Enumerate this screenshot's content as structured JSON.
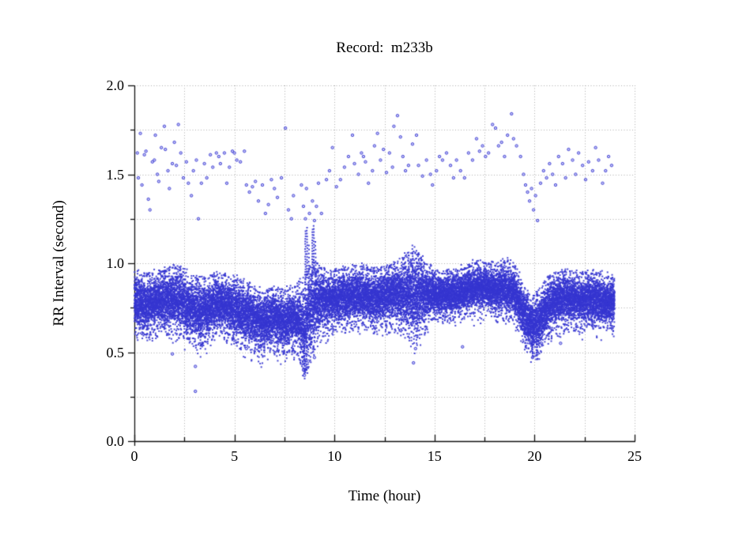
{
  "chart_data": {
    "type": "scatter",
    "title": "Record:  m233b",
    "xlabel": "Time (hour)",
    "ylabel": "RR Interval (second)",
    "xlim": [
      0,
      25
    ],
    "ylim": [
      0,
      2
    ],
    "x_tick_values": [
      0,
      5,
      10,
      15,
      20,
      25
    ],
    "x_tick_labels": [
      "0",
      "5",
      "10",
      "15",
      "20",
      "25"
    ],
    "x_minor_step": 2.5,
    "y_tick_values": [
      0,
      0.5,
      1,
      1.5,
      2
    ],
    "y_tick_labels": [
      "0.0",
      "0.5",
      "1.0",
      "1.5",
      "2.0"
    ],
    "y_minor_step": 0.25,
    "grid": {
      "style": "dotted",
      "color": "#ababab",
      "at_every_minor_tick": true
    },
    "point_color": "#3636d0",
    "data_hours_range": [
      0,
      24
    ],
    "series": [
      {
        "name": "dense-rr-band",
        "type": "envelope-scatter",
        "envelope": [
          [
            0,
            0.63,
            0.95
          ],
          [
            0.3,
            0.62,
            0.93
          ],
          [
            0.6,
            0.6,
            0.92
          ],
          [
            0.9,
            0.63,
            0.93
          ],
          [
            1.2,
            0.66,
            0.94
          ],
          [
            1.5,
            0.64,
            0.95
          ],
          [
            1.8,
            0.62,
            0.96
          ],
          [
            2.1,
            0.62,
            0.97
          ],
          [
            2.4,
            0.6,
            0.95
          ],
          [
            2.7,
            0.58,
            0.93
          ],
          [
            3.0,
            0.58,
            0.92
          ],
          [
            3.3,
            0.55,
            0.9
          ],
          [
            3.6,
            0.57,
            0.91
          ],
          [
            3.9,
            0.6,
            0.92
          ],
          [
            4.2,
            0.62,
            0.93
          ],
          [
            4.5,
            0.62,
            0.93
          ],
          [
            4.8,
            0.6,
            0.91
          ],
          [
            5.1,
            0.58,
            0.9
          ],
          [
            5.4,
            0.56,
            0.89
          ],
          [
            5.7,
            0.54,
            0.87
          ],
          [
            6.0,
            0.53,
            0.85
          ],
          [
            6.3,
            0.5,
            0.83
          ],
          [
            6.6,
            0.52,
            0.83
          ],
          [
            6.9,
            0.54,
            0.85
          ],
          [
            7.2,
            0.52,
            0.84
          ],
          [
            7.5,
            0.51,
            0.83
          ],
          [
            7.8,
            0.53,
            0.85
          ],
          [
            8.1,
            0.52,
            0.86
          ],
          [
            8.35,
            0.45,
            0.88
          ],
          [
            8.5,
            0.38,
            0.9
          ],
          [
            8.7,
            0.45,
            0.95
          ],
          [
            8.9,
            0.52,
            1.0
          ],
          [
            9.1,
            0.58,
            1.0
          ],
          [
            9.3,
            0.62,
            0.97
          ],
          [
            9.6,
            0.64,
            0.95
          ],
          [
            10.0,
            0.65,
            0.95
          ],
          [
            10.4,
            0.66,
            0.96
          ],
          [
            10.8,
            0.67,
            0.96
          ],
          [
            11.2,
            0.68,
            0.97
          ],
          [
            11.6,
            0.66,
            0.96
          ],
          [
            12.0,
            0.65,
            0.95
          ],
          [
            12.4,
            0.66,
            0.96
          ],
          [
            12.8,
            0.67,
            0.98
          ],
          [
            13.2,
            0.66,
            1.0
          ],
          [
            13.6,
            0.62,
            1.03
          ],
          [
            14.0,
            0.57,
            1.06
          ],
          [
            14.3,
            0.62,
            1.02
          ],
          [
            14.6,
            0.67,
            0.98
          ],
          [
            15.0,
            0.7,
            0.95
          ],
          [
            15.4,
            0.71,
            0.94
          ],
          [
            15.8,
            0.7,
            0.94
          ],
          [
            16.2,
            0.71,
            0.95
          ],
          [
            16.6,
            0.72,
            0.97
          ],
          [
            17.0,
            0.73,
            0.99
          ],
          [
            17.4,
            0.74,
            1.0
          ],
          [
            17.8,
            0.73,
            0.99
          ],
          [
            18.2,
            0.72,
            0.98
          ],
          [
            18.6,
            0.72,
            1.0
          ],
          [
            19.0,
            0.7,
            0.97
          ],
          [
            19.3,
            0.62,
            0.9
          ],
          [
            19.6,
            0.54,
            0.84
          ],
          [
            19.9,
            0.5,
            0.8
          ],
          [
            20.2,
            0.52,
            0.82
          ],
          [
            20.5,
            0.58,
            0.88
          ],
          [
            20.8,
            0.62,
            0.92
          ],
          [
            21.1,
            0.65,
            0.94
          ],
          [
            21.5,
            0.66,
            0.95
          ],
          [
            21.9,
            0.67,
            0.94
          ],
          [
            22.3,
            0.65,
            0.93
          ],
          [
            22.7,
            0.66,
            0.94
          ],
          [
            23.1,
            0.65,
            0.93
          ],
          [
            23.5,
            0.64,
            0.92
          ],
          [
            24.0,
            0.65,
            0.9
          ]
        ]
      },
      {
        "name": "long-rr-outliers",
        "type": "points",
        "points": [
          [
            0.15,
            1.62
          ],
          [
            0.2,
            1.48
          ],
          [
            0.3,
            1.73
          ],
          [
            0.38,
            1.44
          ],
          [
            0.5,
            1.61
          ],
          [
            0.58,
            1.63
          ],
          [
            0.7,
            1.36
          ],
          [
            0.78,
            1.3
          ],
          [
            0.9,
            1.57
          ],
          [
            1.0,
            1.58
          ],
          [
            1.05,
            1.72
          ],
          [
            1.15,
            1.5
          ],
          [
            1.22,
            1.46
          ],
          [
            1.35,
            1.65
          ],
          [
            1.5,
            1.77
          ],
          [
            1.55,
            1.64
          ],
          [
            1.68,
            1.52
          ],
          [
            1.75,
            1.42
          ],
          [
            1.9,
            1.56
          ],
          [
            2.0,
            1.68
          ],
          [
            2.1,
            1.55
          ],
          [
            2.2,
            1.78
          ],
          [
            2.32,
            1.62
          ],
          [
            2.45,
            1.48
          ],
          [
            2.6,
            1.57
          ],
          [
            2.7,
            1.45
          ],
          [
            2.85,
            1.38
          ],
          [
            2.95,
            1.52
          ],
          [
            3.1,
            1.58
          ],
          [
            3.2,
            1.25
          ],
          [
            3.35,
            1.45
          ],
          [
            3.5,
            1.56
          ],
          [
            3.62,
            1.48
          ],
          [
            3.8,
            1.61
          ],
          [
            3.92,
            1.54
          ],
          [
            4.1,
            1.62
          ],
          [
            4.22,
            1.6
          ],
          [
            4.3,
            1.56
          ],
          [
            4.5,
            1.62
          ],
          [
            4.62,
            1.45
          ],
          [
            4.75,
            1.54
          ],
          [
            4.9,
            1.63
          ],
          [
            5.0,
            1.62
          ],
          [
            5.12,
            1.58
          ],
          [
            5.3,
            1.57
          ],
          [
            5.5,
            1.63
          ],
          [
            5.6,
            1.44
          ],
          [
            5.75,
            1.4
          ],
          [
            5.9,
            1.43
          ],
          [
            6.05,
            1.46
          ],
          [
            6.2,
            1.35
          ],
          [
            6.4,
            1.44
          ],
          [
            6.55,
            1.28
          ],
          [
            6.7,
            1.33
          ],
          [
            6.85,
            1.47
          ],
          [
            7.0,
            1.42
          ],
          [
            7.15,
            1.37
          ],
          [
            7.35,
            1.48
          ],
          [
            7.55,
            1.76
          ],
          [
            7.7,
            1.3
          ],
          [
            7.85,
            1.25
          ],
          [
            7.95,
            1.38
          ],
          [
            8.35,
            1.44
          ],
          [
            8.45,
            1.32
          ],
          [
            8.55,
            1.25
          ],
          [
            8.6,
            1.42
          ],
          [
            8.75,
            1.28
          ],
          [
            8.9,
            1.35
          ],
          [
            9.0,
            1.24
          ],
          [
            9.1,
            1.32
          ],
          [
            9.2,
            1.45
          ],
          [
            9.35,
            1.28
          ],
          [
            9.6,
            1.47
          ],
          [
            9.75,
            1.52
          ],
          [
            9.9,
            1.65
          ],
          [
            10.1,
            1.43
          ],
          [
            10.3,
            1.47
          ],
          [
            10.5,
            1.54
          ],
          [
            10.7,
            1.6
          ],
          [
            10.9,
            1.72
          ],
          [
            11.0,
            1.56
          ],
          [
            11.2,
            1.5
          ],
          [
            11.35,
            1.62
          ],
          [
            11.45,
            1.6
          ],
          [
            11.55,
            1.57
          ],
          [
            11.7,
            1.45
          ],
          [
            11.9,
            1.52
          ],
          [
            12.0,
            1.66
          ],
          [
            12.15,
            1.73
          ],
          [
            12.3,
            1.58
          ],
          [
            12.45,
            1.64
          ],
          [
            12.6,
            1.51
          ],
          [
            12.75,
            1.62
          ],
          [
            12.9,
            1.54
          ],
          [
            12.97,
            1.77
          ],
          [
            13.15,
            1.83
          ],
          [
            13.3,
            1.71
          ],
          [
            13.42,
            1.6
          ],
          [
            13.55,
            1.52
          ],
          [
            13.7,
            1.55
          ],
          [
            13.9,
            1.67
          ],
          [
            14.1,
            1.72
          ],
          [
            14.2,
            1.55
          ],
          [
            14.4,
            1.49
          ],
          [
            14.6,
            1.58
          ],
          [
            14.8,
            1.5
          ],
          [
            14.9,
            1.44
          ],
          [
            15.1,
            1.52
          ],
          [
            15.25,
            1.6
          ],
          [
            15.4,
            1.58
          ],
          [
            15.6,
            1.62
          ],
          [
            15.8,
            1.55
          ],
          [
            15.95,
            1.48
          ],
          [
            16.1,
            1.58
          ],
          [
            16.3,
            1.52
          ],
          [
            16.5,
            1.48
          ],
          [
            16.7,
            1.62
          ],
          [
            16.9,
            1.58
          ],
          [
            17.1,
            1.7
          ],
          [
            17.25,
            1.63
          ],
          [
            17.4,
            1.66
          ],
          [
            17.55,
            1.6
          ],
          [
            17.7,
            1.62
          ],
          [
            17.9,
            1.78
          ],
          [
            18.05,
            1.76
          ],
          [
            18.2,
            1.66
          ],
          [
            18.35,
            1.68
          ],
          [
            18.5,
            1.6
          ],
          [
            18.65,
            1.72
          ],
          [
            18.85,
            1.84
          ],
          [
            18.95,
            1.7
          ],
          [
            19.1,
            1.66
          ],
          [
            19.3,
            1.6
          ],
          [
            19.45,
            1.5
          ],
          [
            19.55,
            1.44
          ],
          [
            19.65,
            1.4
          ],
          [
            19.75,
            1.35
          ],
          [
            19.85,
            1.42
          ],
          [
            19.95,
            1.3
          ],
          [
            20.05,
            1.38
          ],
          [
            20.15,
            1.24
          ],
          [
            20.3,
            1.45
          ],
          [
            20.45,
            1.52
          ],
          [
            20.6,
            1.48
          ],
          [
            20.75,
            1.56
          ],
          [
            20.9,
            1.5
          ],
          [
            21.05,
            1.44
          ],
          [
            21.2,
            1.6
          ],
          [
            21.4,
            1.56
          ],
          [
            21.55,
            1.48
          ],
          [
            21.7,
            1.64
          ],
          [
            21.9,
            1.58
          ],
          [
            22.05,
            1.5
          ],
          [
            22.2,
            1.62
          ],
          [
            22.4,
            1.55
          ],
          [
            22.55,
            1.47
          ],
          [
            22.7,
            1.57
          ],
          [
            22.9,
            1.52
          ],
          [
            23.05,
            1.65
          ],
          [
            23.2,
            1.58
          ],
          [
            23.4,
            1.45
          ],
          [
            23.55,
            1.52
          ],
          [
            23.7,
            1.6
          ],
          [
            23.85,
            1.55
          ]
        ]
      },
      {
        "name": "short-rr-outliers",
        "type": "points",
        "points": [
          [
            1.9,
            0.49
          ],
          [
            3.05,
            0.42
          ],
          [
            3.05,
            0.28
          ],
          [
            5.6,
            0.52
          ],
          [
            8.45,
            0.4
          ],
          [
            8.5,
            0.37
          ],
          [
            8.55,
            0.43
          ],
          [
            8.7,
            0.45
          ],
          [
            9.0,
            0.47
          ],
          [
            13.95,
            0.44
          ],
          [
            14.05,
            0.52
          ],
          [
            19.9,
            0.47
          ],
          [
            20.35,
            0.55
          ],
          [
            21.3,
            0.55
          ],
          [
            16.4,
            0.53
          ]
        ]
      },
      {
        "name": "transient-streaks",
        "type": "vertical-streaks",
        "streaks": [
          [
            8.5,
            0.38,
            0.62,
            18
          ],
          [
            8.55,
            0.88,
            1.18,
            22
          ],
          [
            8.6,
            0.4,
            0.6,
            14
          ],
          [
            8.63,
            0.92,
            1.2,
            18
          ],
          [
            8.72,
            0.85,
            1.1,
            12
          ],
          [
            8.9,
            0.9,
            1.19,
            20
          ],
          [
            8.97,
            0.95,
            1.21,
            16
          ],
          [
            9.05,
            0.88,
            1.12,
            12
          ],
          [
            13.7,
            0.95,
            1.06,
            8
          ],
          [
            13.9,
            0.96,
            1.1,
            8
          ],
          [
            14.1,
            0.92,
            1.07,
            8
          ],
          [
            6.5,
            0.5,
            0.58,
            8
          ],
          [
            3.3,
            0.52,
            0.6,
            6
          ],
          [
            19.9,
            0.47,
            0.55,
            8
          ],
          [
            20.1,
            0.48,
            0.56,
            6
          ]
        ]
      }
    ]
  }
}
